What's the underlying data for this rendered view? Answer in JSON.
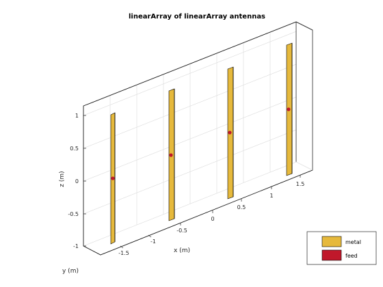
{
  "figure": {
    "title": "linearArray of linearArray antennas",
    "xlabel": "x (m)",
    "ylabel": "y (m)",
    "zlabel": "z (m)"
  },
  "axes": {
    "z_ticks": [
      "-1",
      "-0.5",
      "0",
      "0.5",
      "1"
    ],
    "x_ticks": [
      "-0.5",
      "0",
      "0.5",
      "1",
      "1.5"
    ],
    "y_ticks": [
      "-1.5",
      "-1"
    ]
  },
  "legend": {
    "placement": "bottom-right",
    "items": [
      {
        "label": "metal",
        "color": "#E6B93C"
      },
      {
        "label": "feed",
        "color": "#C0182B"
      }
    ]
  },
  "elements": [
    {
      "kind": "strip-dipole",
      "x": -1.5,
      "feed_z": 0
    },
    {
      "kind": "strip-dipole",
      "x": -0.5,
      "feed_z": 0
    },
    {
      "kind": "strip-dipole",
      "x": 0.5,
      "feed_z": 0
    },
    {
      "kind": "strip-dipole",
      "x": 1.5,
      "feed_z": 0
    }
  ]
}
